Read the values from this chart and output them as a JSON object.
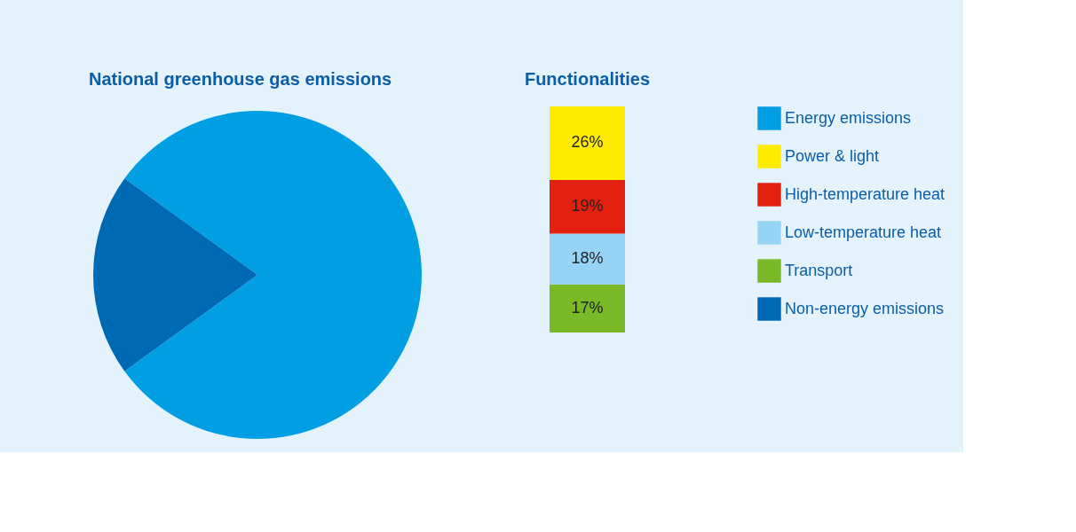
{
  "chart_data": [
    {
      "type": "pie",
      "title": "National greenhouse gas emissions",
      "categories": [
        "Energy emissions",
        "Non-energy emissions"
      ],
      "values": [
        80,
        20
      ],
      "colors": [
        "#009fe3",
        "#0069b4"
      ],
      "legend": "right"
    },
    {
      "type": "bar",
      "stacked": true,
      "title": "Functionalities",
      "categories": [
        null
      ],
      "legend": "right",
      "series": [
        {
          "name": "Transport",
          "color": "#79b928",
          "values": [
            17
          ],
          "value_labels": [
            "17%"
          ]
        },
        {
          "name": "Low-temperature heat",
          "color": "#97d3f5",
          "values": [
            18
          ],
          "value_labels": [
            "18%"
          ]
        },
        {
          "name": "High-temperature heat",
          "color": "#e3200f",
          "values": [
            19
          ],
          "value_labels": [
            "19%"
          ]
        },
        {
          "name": "Power & light",
          "color": "#ffec00",
          "values": [
            26
          ],
          "value_labels": [
            "26%"
          ]
        }
      ]
    }
  ]
}
